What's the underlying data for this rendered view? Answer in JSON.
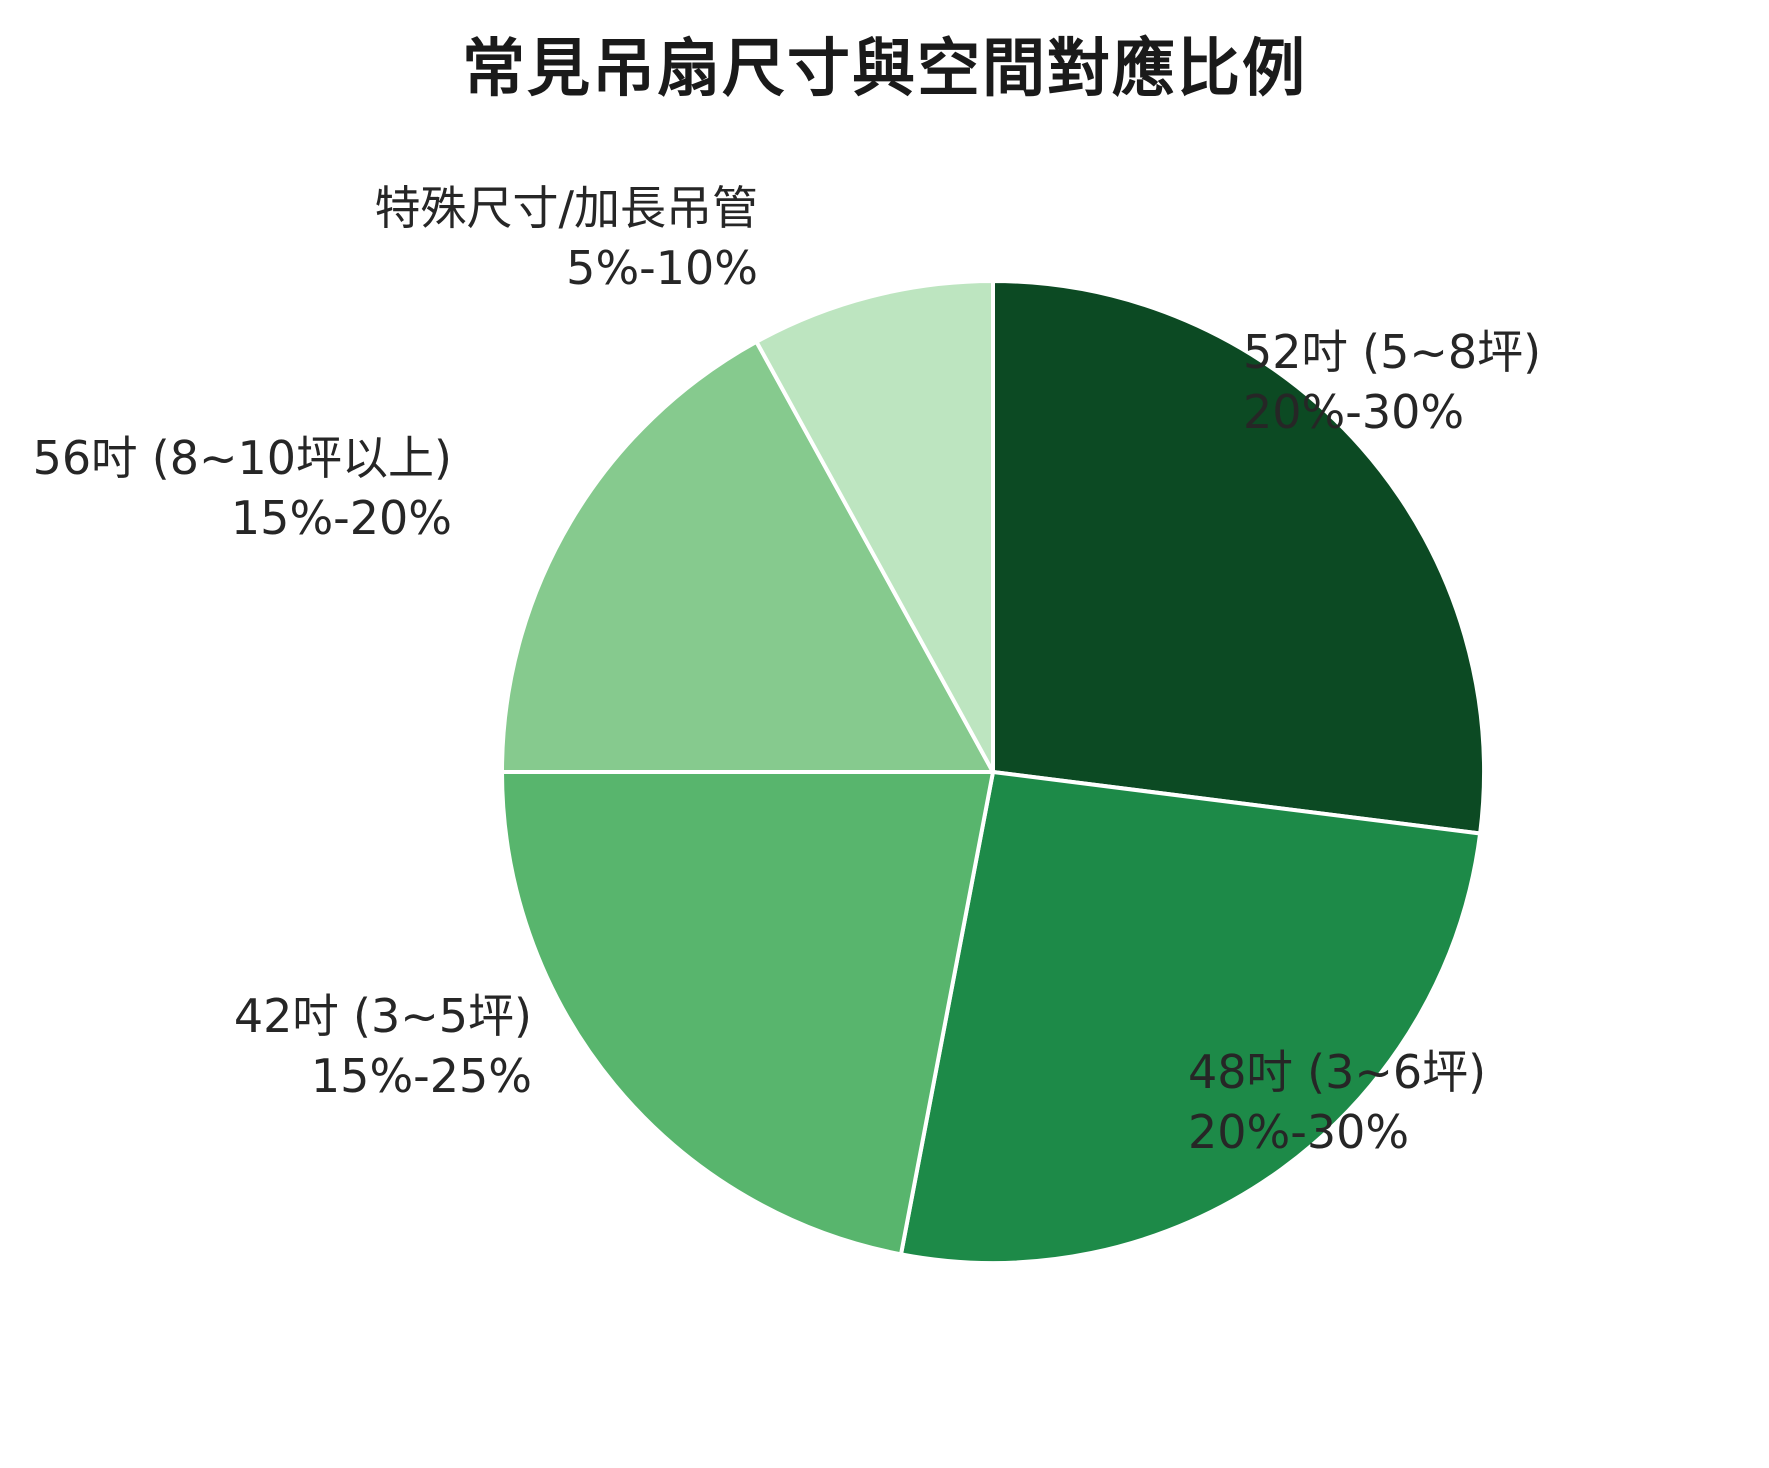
{
  "chart_data": {
    "type": "pie",
    "title": "常見吊扇尺寸與空間對應比例",
    "direction": "clockwise",
    "start_angle": "top",
    "legend": "none",
    "stroke_color": "#ffffff",
    "slices": [
      {
        "id": "52in",
        "label": "52吋 (5~8坪)",
        "pct_label": "20%-30%",
        "value": 27,
        "color": "#0c4a23"
      },
      {
        "id": "48in",
        "label": "48吋 (3~6坪)",
        "pct_label": "20%-30%",
        "value": 26,
        "color": "#1d8a48"
      },
      {
        "id": "42in",
        "label": "42吋 (3~5坪)",
        "pct_label": "15%-25%",
        "value": 22,
        "color": "#58b56d"
      },
      {
        "id": "56in",
        "label": "56吋 (8~10坪以上)",
        "pct_label": "15%-20%",
        "value": 17,
        "color": "#86ca8e"
      },
      {
        "id": "special",
        "label": "特殊尺寸/加長吊管",
        "pct_label": "5%-10%",
        "value": 8,
        "color": "#bde5c0"
      }
    ]
  }
}
